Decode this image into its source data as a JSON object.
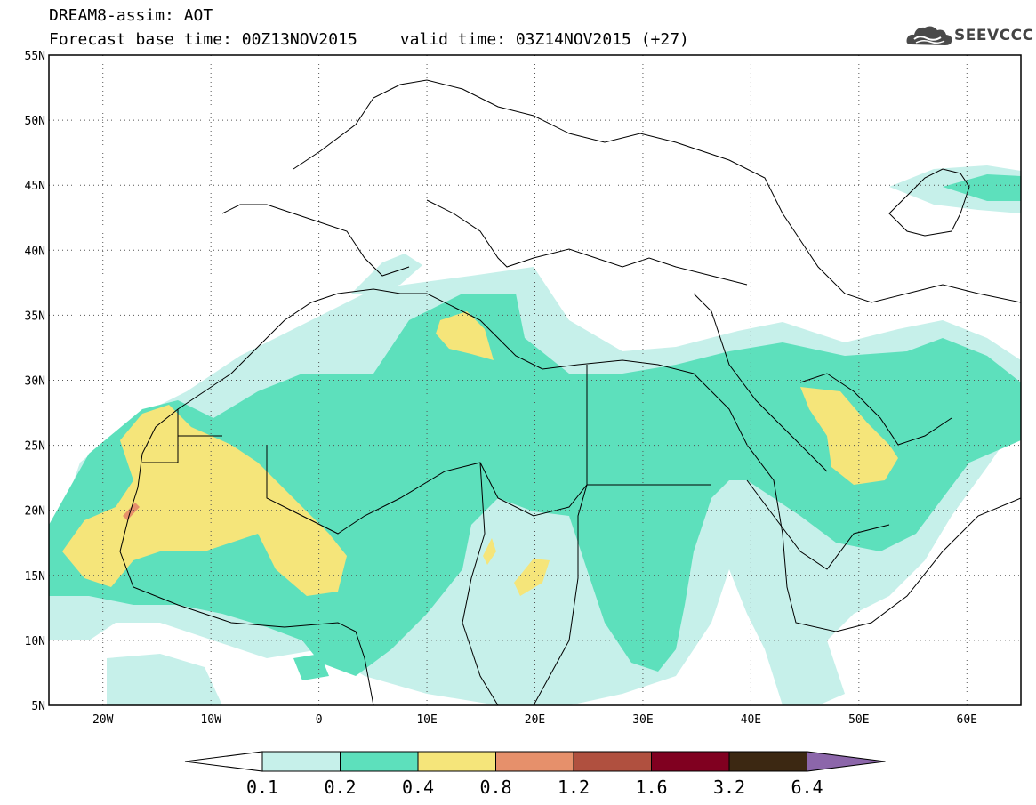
{
  "title": {
    "line1": "DREAM8-assim: AOT",
    "base": "Forecast base time: 00Z13NOV2015",
    "valid": "valid time: 03Z14NOV2015 (+27)"
  },
  "logo": {
    "label": "SEEVCCC",
    "icon": "cloud-icon"
  },
  "map": {
    "lon_range": [
      -25,
      65
    ],
    "lat_range": [
      5,
      55
    ],
    "lat_labels": [
      "55N",
      "50N",
      "45N",
      "40N",
      "35N",
      "30N",
      "25N",
      "20N",
      "15N",
      "10N",
      "5N"
    ],
    "lon_labels": [
      "20W",
      "10W",
      "0",
      "10E",
      "20E",
      "30E",
      "40E",
      "50E",
      "60E"
    ],
    "grid": "dotted"
  },
  "colorbar": {
    "levels": [
      "0.1",
      "0.2",
      "0.4",
      "0.8",
      "1.2",
      "1.6",
      "3.2",
      "6.4"
    ],
    "colors": [
      "#c6f0ea",
      "#5de0bc",
      "#f5e57a",
      "#e6906b",
      "#b0503f",
      "#800020",
      "#3c2812",
      "#8c66aa"
    ]
  }
}
